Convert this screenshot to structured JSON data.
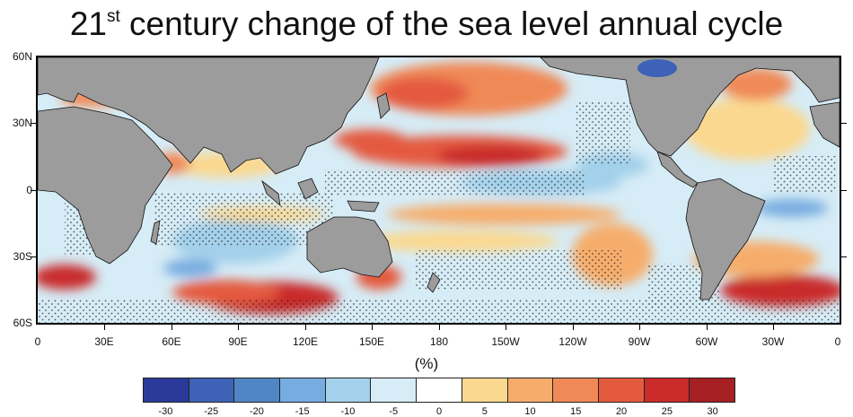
{
  "title": {
    "prefix": "21",
    "superscript": "st",
    "rest": " century change of the sea level annual cycle"
  },
  "map": {
    "projection": "equirectangular",
    "lon_range": [
      0,
      360
    ],
    "lat_range": [
      -60,
      60
    ],
    "land_color": "#9c9c9c",
    "stipple": "black dots mark regions where the change is not significant",
    "lat_labels": [
      "60N",
      "30N",
      "0",
      "30S",
      "60S"
    ],
    "lon_labels": [
      "0",
      "30E",
      "60E",
      "90E",
      "120E",
      "150E",
      "180",
      "150W",
      "120W",
      "90W",
      "60W",
      "30W",
      "0"
    ]
  },
  "colorbar": {
    "unit_label": "(%)",
    "tick_labels": [
      "-30",
      "-25",
      "-20",
      "-15",
      "-10",
      "-5",
      "0",
      "5",
      "10",
      "15",
      "20",
      "25",
      "30"
    ],
    "colors": [
      "#2b3a9a",
      "#3d62b6",
      "#4f87c6",
      "#77ace0",
      "#a3d0ea",
      "#d6ecf6",
      "#ffffff",
      "#fbd88f",
      "#f6ad6c",
      "#f08957",
      "#e45a3f",
      "#c92b2b",
      "#a51f23"
    ]
  }
}
